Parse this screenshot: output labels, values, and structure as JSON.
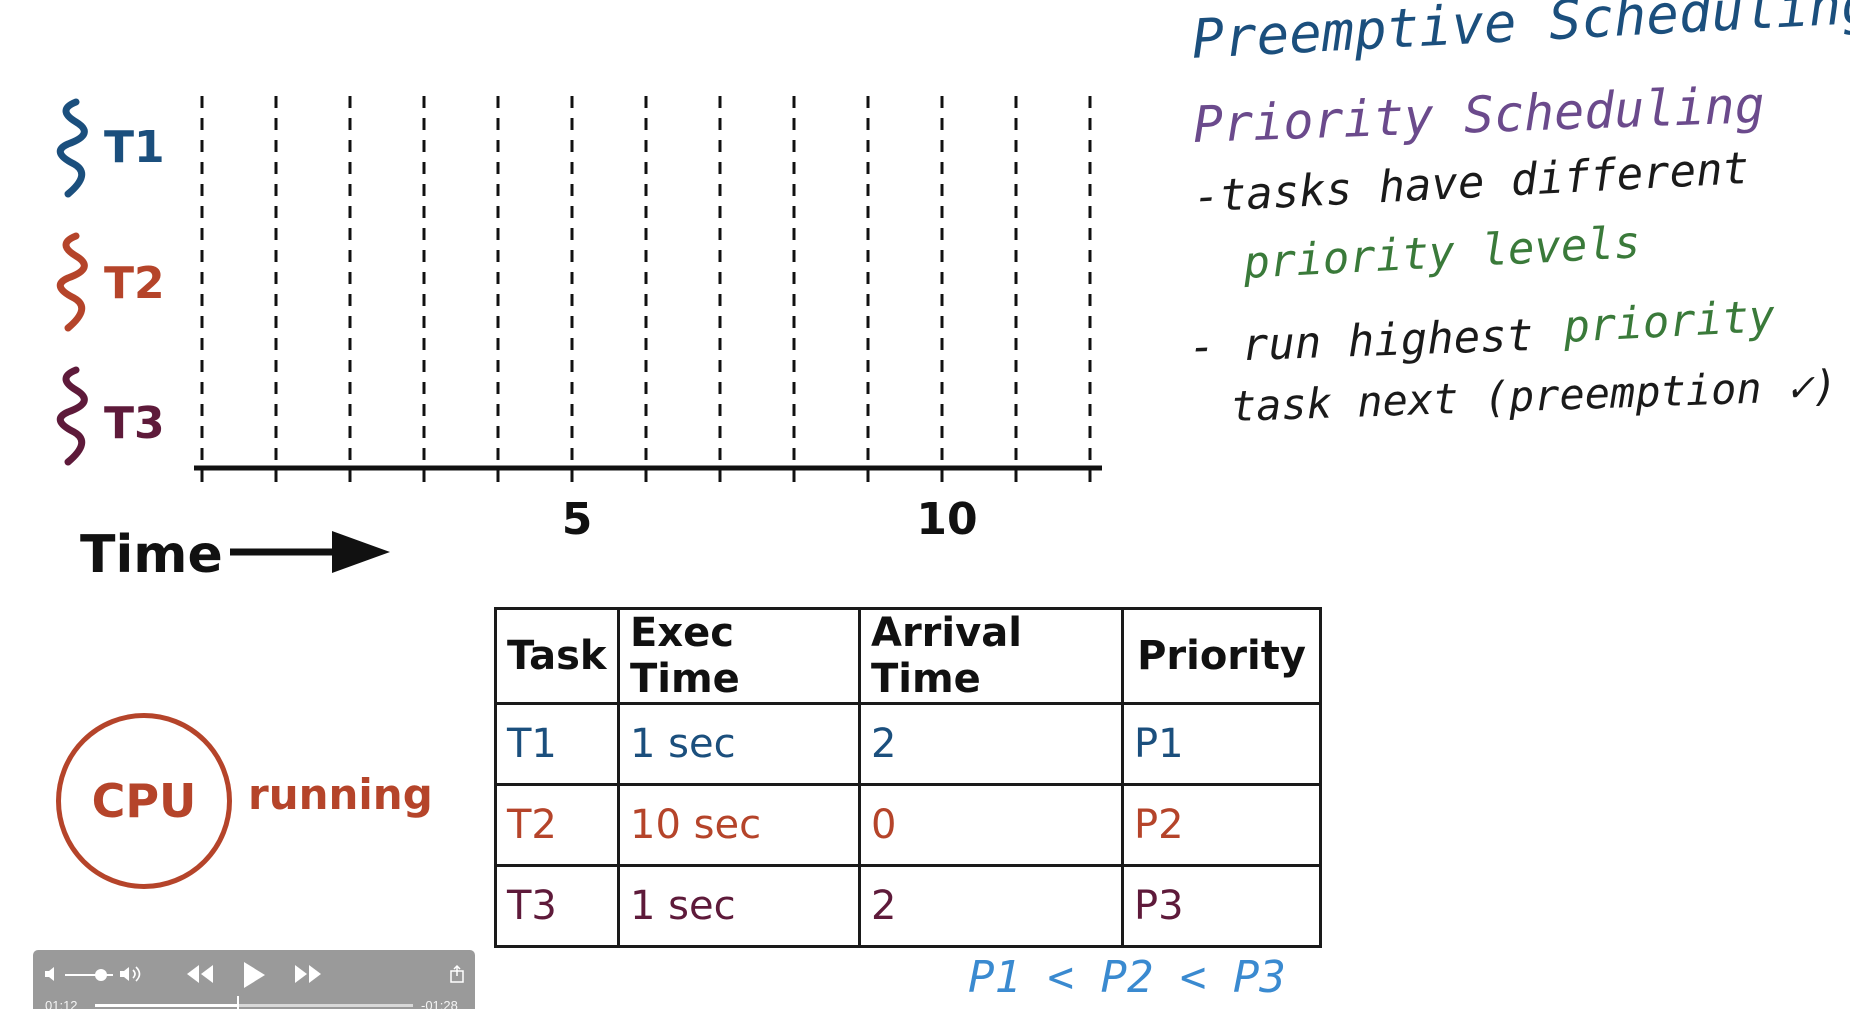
{
  "tasks": [
    {
      "label": "T1",
      "color": "#1b4f7d"
    },
    {
      "label": "T2",
      "color": "#b5442a"
    },
    {
      "label": "T3",
      "color": "#5e1a3a"
    }
  ],
  "timeline": {
    "tick_labels": [
      "5",
      "10"
    ],
    "axis_label": "Time"
  },
  "table": {
    "headers": [
      "Task",
      "Exec Time",
      "Arrival Time",
      "Priority"
    ],
    "rows": [
      {
        "task": "T1",
        "exec": "1 sec",
        "arrival": "2",
        "priority": "P1",
        "color": "#1b4f7d"
      },
      {
        "task": "T2",
        "exec": "10 sec",
        "arrival": "0",
        "priority": "P2",
        "color": "#b5442a"
      },
      {
        "task": "T3",
        "exec": "1 sec",
        "arrival": "2",
        "priority": "P3",
        "color": "#5e1a3a"
      }
    ]
  },
  "cpu": {
    "label": "CPU",
    "status": "running"
  },
  "notes": {
    "title": "Preemptive Scheduling",
    "subtitle": "Priority Scheduling",
    "bullet1_a": "-tasks have different",
    "bullet1_b": "priority levels",
    "bullet2_a": "- run highest",
    "bullet2_b": "priority",
    "bullet2_c": "task next (preemption ✓)",
    "order": "P1 < P2 < P3",
    "colors": {
      "title": "#1b4f7d",
      "subtitle": "#6b4a8c",
      "body": "#1a1a1a",
      "accent": "#3a7a3a",
      "order": "#3a8ad0"
    }
  },
  "player": {
    "elapsed": "01:12",
    "remaining": "-01:28",
    "progress_fraction": 0.45,
    "volume_fraction": 0.75,
    "icons": [
      "volume-low-icon",
      "volume-high-icon",
      "rewind-icon",
      "play-icon",
      "fast-forward-icon",
      "share-icon"
    ]
  }
}
